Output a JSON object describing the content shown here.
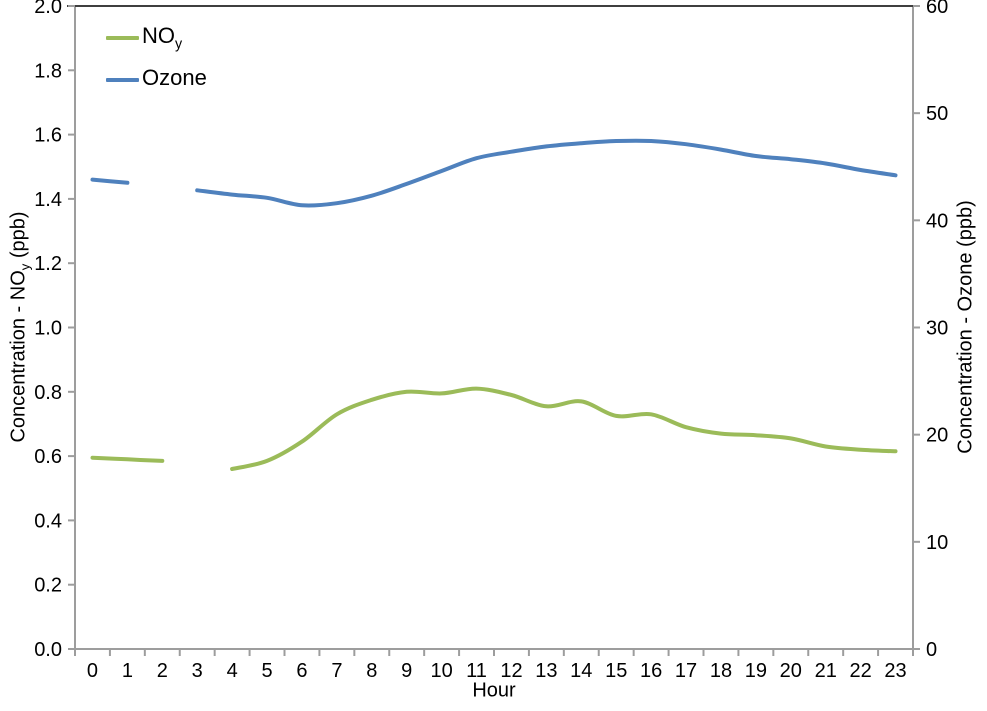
{
  "chart_data": {
    "type": "line",
    "title": "",
    "xlabel": "Hour",
    "x_categories": [
      "0",
      "1",
      "2",
      "3",
      "4",
      "5",
      "6",
      "7",
      "8",
      "9",
      "10",
      "11",
      "12",
      "13",
      "14",
      "15",
      "16",
      "17",
      "18",
      "19",
      "20",
      "21",
      "22",
      "23"
    ],
    "left_axis": {
      "title_prefix": "Concentration - NO",
      "title_sub": "y",
      "title_suffix": " (ppb)",
      "min": 0.0,
      "max": 2.0,
      "step": 0.2,
      "tick_labels": [
        "0.0",
        "0.2",
        "0.4",
        "0.6",
        "0.8",
        "1.0",
        "1.2",
        "1.4",
        "1.6",
        "1.8",
        "2.0"
      ]
    },
    "right_axis": {
      "title": "Concentration - Ozone (ppb)",
      "min": 0,
      "max": 60,
      "step": 10,
      "tick_labels": [
        "0",
        "10",
        "20",
        "30",
        "40",
        "50",
        "60"
      ]
    },
    "grid": "off",
    "legend_position": "top-left-inside",
    "series": [
      {
        "name": "NOy",
        "label_text": "NO",
        "label_sub": "y",
        "axis": "left",
        "color": "#9BBB59",
        "smooth": true,
        "values": [
          0.595,
          0.59,
          0.585,
          null,
          0.56,
          0.585,
          0.645,
          0.73,
          0.775,
          0.8,
          0.795,
          0.81,
          0.79,
          0.755,
          0.77,
          0.725,
          0.73,
          0.69,
          0.67,
          0.665,
          0.655,
          0.63,
          0.62,
          0.615
        ]
      },
      {
        "name": "Ozone",
        "label_text": "Ozone",
        "label_sub": "",
        "axis": "right",
        "color": "#4F81BD",
        "smooth": true,
        "values": [
          43.8,
          43.5,
          null,
          42.8,
          42.4,
          42.1,
          41.4,
          41.6,
          42.3,
          43.4,
          44.6,
          45.8,
          46.4,
          46.9,
          47.2,
          47.4,
          47.4,
          47.1,
          46.6,
          46.0,
          45.7,
          45.3,
          44.7,
          44.2
        ]
      }
    ],
    "axis_color": "#9d9d9d",
    "top_border_color": "#3f3f3f",
    "text_color": "#000000"
  }
}
